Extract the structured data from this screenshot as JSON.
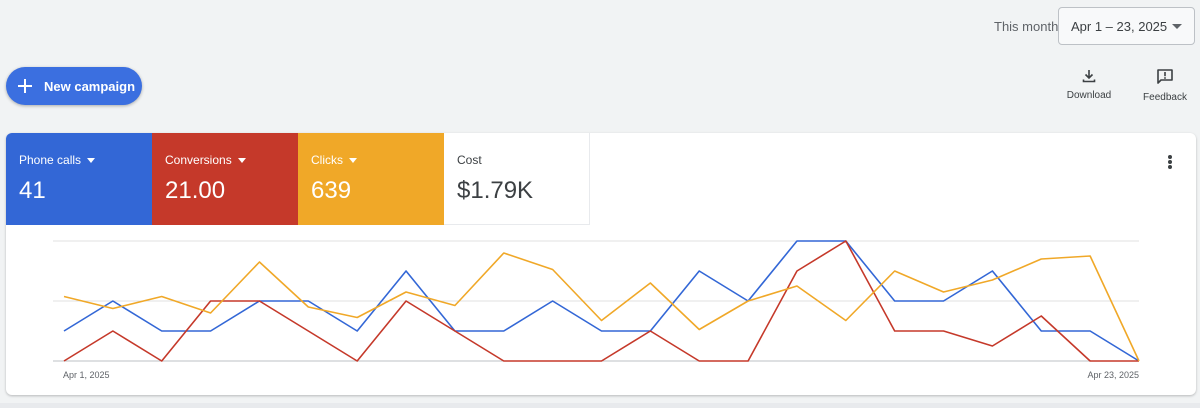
{
  "header": {
    "date_label": "This month",
    "date_range": "Apr 1 – 23, 2025"
  },
  "toolbar": {
    "new_campaign_label": "New campaign",
    "download_label": "Download",
    "feedback_label": "Feedback"
  },
  "metrics": [
    {
      "label": "Phone calls",
      "value": "41",
      "color": "#3367d6",
      "has_dropdown": true
    },
    {
      "label": "Conversions",
      "value": "21.00",
      "color": "#c5392a",
      "has_dropdown": true
    },
    {
      "label": "Clicks",
      "value": "639",
      "color": "#f0a828",
      "has_dropdown": true
    },
    {
      "label": "Cost",
      "value": "$1.79K",
      "color": "#ffffff",
      "has_dropdown": false
    }
  ],
  "chart_data": {
    "type": "line",
    "x": [
      "Apr 1",
      "Apr 2",
      "Apr 3",
      "Apr 4",
      "Apr 5",
      "Apr 6",
      "Apr 7",
      "Apr 8",
      "Apr 9",
      "Apr 10",
      "Apr 11",
      "Apr 12",
      "Apr 13",
      "Apr 14",
      "Apr 15",
      "Apr 16",
      "Apr 17",
      "Apr 18",
      "Apr 19",
      "Apr 20",
      "Apr 21",
      "Apr 22",
      "Apr 23"
    ],
    "x_tick_labels": {
      "first": "Apr 1, 2025",
      "last": "Apr 23, 2025"
    },
    "grid": true,
    "ylim": [
      0,
      4
    ],
    "series": [
      {
        "color": "#3367d6",
        "values": [
          1,
          2,
          1,
          1,
          2,
          2,
          1,
          3,
          1,
          1,
          2,
          1,
          1,
          3,
          2,
          4,
          4,
          2,
          2,
          3,
          1,
          1,
          0
        ]
      },
      {
        "color": "#c5392a",
        "values": [
          0,
          1,
          0,
          2,
          2,
          1,
          0,
          2,
          1,
          0,
          0,
          0,
          1,
          0,
          0,
          3,
          4,
          1,
          1,
          0.5,
          1.5,
          0,
          0
        ]
      },
      {
        "color": "#f0a828",
        "values": [
          2.15,
          1.75,
          2.15,
          1.6,
          3.3,
          1.8,
          1.45,
          2.3,
          1.85,
          3.6,
          3.05,
          1.35,
          2.6,
          1.05,
          2.0,
          2.5,
          1.35,
          3.0,
          2.3,
          2.7,
          3.4,
          3.5,
          0
        ]
      }
    ]
  }
}
